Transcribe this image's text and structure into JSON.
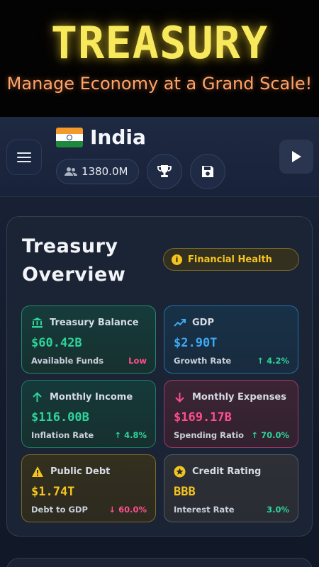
{
  "banner": {
    "title": "TREASURY",
    "subtitle": "Manage Economy at a Grand Scale!"
  },
  "header": {
    "country": "India",
    "population": "1380.0M",
    "icons": [
      "menu-icon",
      "india-flag",
      "people-icon",
      "trophy-icon",
      "save-icon",
      "play-icon"
    ]
  },
  "overview": {
    "title": "Treasury Overview",
    "health_label": "Financial Health",
    "cards": [
      {
        "label": "Treasury Balance",
        "value": "$60.42B",
        "sub": "Available Funds",
        "trend": "Low",
        "color": "#2fd39a",
        "trend_color": "#ff4f8b"
      },
      {
        "label": "GDP",
        "value": "$2.90T",
        "sub": "Growth Rate",
        "trend": "↑ 4.2%",
        "color": "#3fa9f5",
        "trend_color": "#2fd39a"
      },
      {
        "label": "Monthly Income",
        "value": "$116.00B",
        "sub": "Inflation Rate",
        "trend": "↑ 4.8%",
        "color": "#2fd39a",
        "trend_color": "#2fd39a"
      },
      {
        "label": "Monthly Expenses",
        "value": "$169.17B",
        "sub": "Spending Ratio",
        "trend": "↑ 70.0%",
        "color": "#ff4f8b",
        "trend_color": "#2fd39a"
      },
      {
        "label": "Public Debt",
        "value": "$1.74T",
        "sub": "Debt to GDP",
        "trend": "↓ 60.0%",
        "color": "#f5c51f",
        "trend_color": "#ff4f8b"
      },
      {
        "label": "Credit Rating",
        "value": "BBB",
        "sub": "Interest Rate",
        "trend": "3.0%",
        "color": "#f5c51f",
        "trend_color": "#2fd39a"
      }
    ]
  }
}
